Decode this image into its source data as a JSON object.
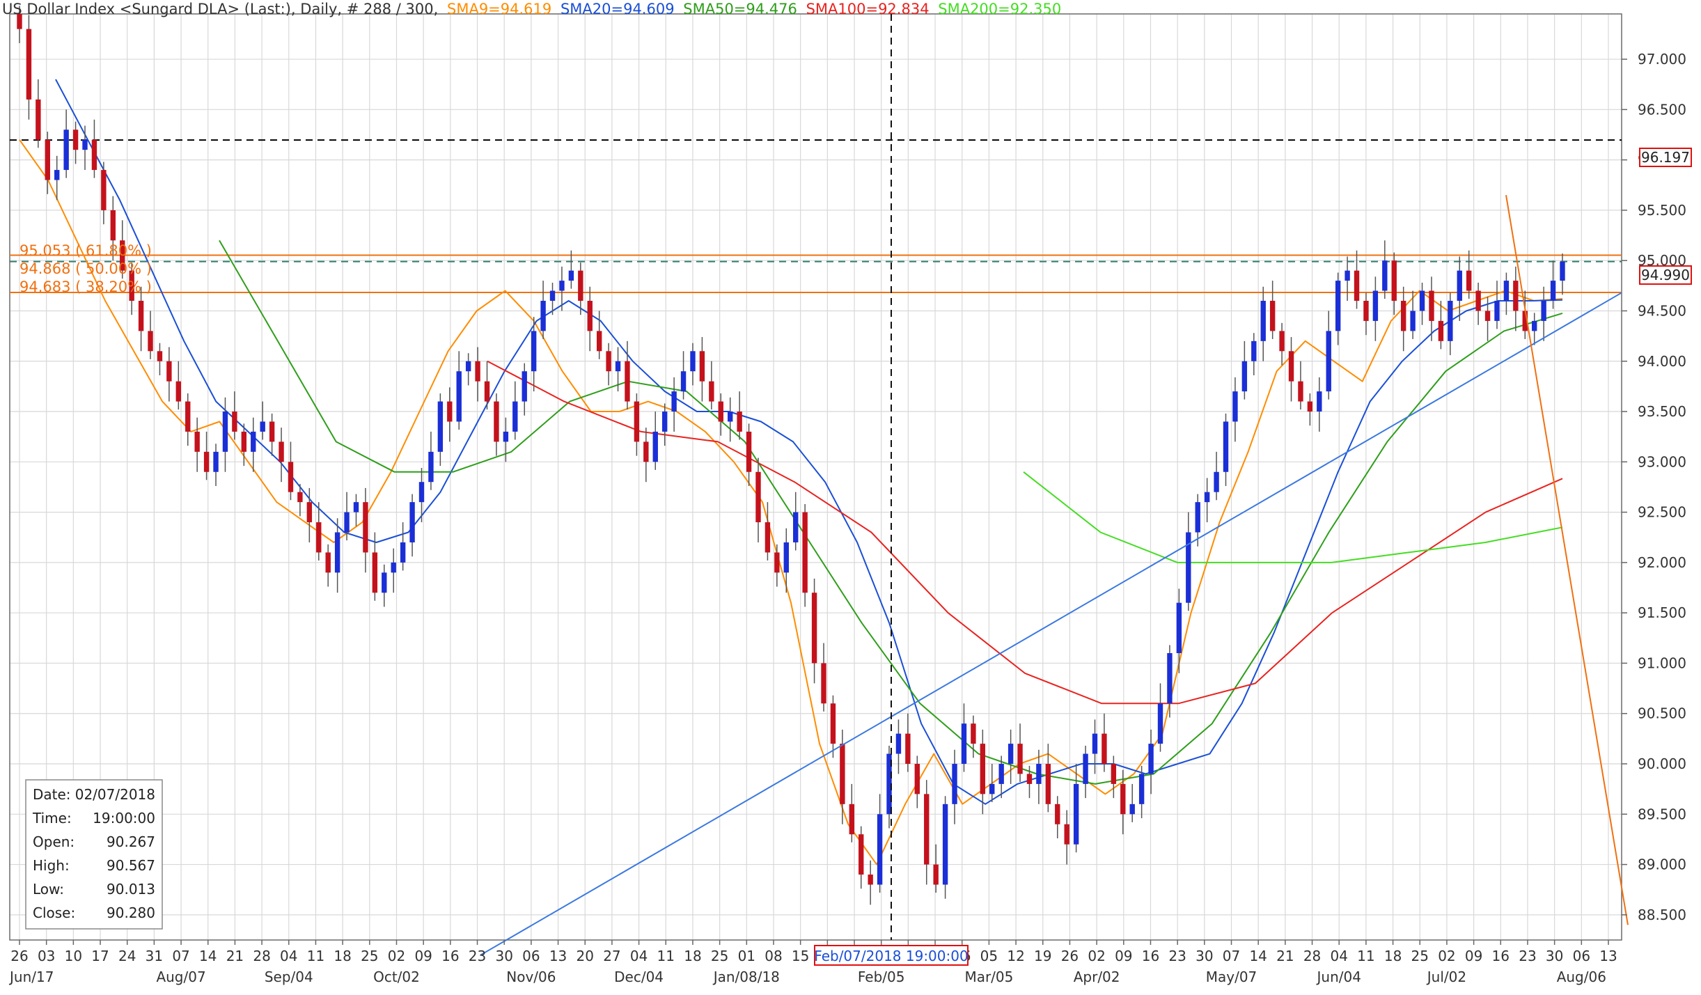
{
  "header": {
    "instrument": "US Dollar Index <Sungard DLA> (Last:), Daily, # 288 / 300,",
    "smas": [
      {
        "label": "SMA9=94.619",
        "color": "#ff8c00"
      },
      {
        "label": "SMA20=94.609",
        "color": "#1a4fd6"
      },
      {
        "label": "SMA50=94.476",
        "color": "#2e9e1a"
      },
      {
        "label": "SMA100=92.834",
        "color": "#e8231f"
      },
      {
        "label": "SMA200=92.350",
        "color": "#44dd22"
      }
    ]
  },
  "markers": {
    "price_marker_top": "96.197",
    "price_marker_last": "94.990",
    "crosshair_date": "Feb/07/2018 19:00:00"
  },
  "info_box": {
    "rows": [
      {
        "label": "Date:",
        "value": "02/07/2018"
      },
      {
        "label": "Time:",
        "value": "19:00:00"
      },
      {
        "label": "Open:",
        "value": "90.267"
      },
      {
        "label": "High:",
        "value": "90.567"
      },
      {
        "label": "Low:",
        "value": "90.013"
      },
      {
        "label": "Close:",
        "value": "90.280"
      }
    ]
  },
  "fib_labels": [
    "95.053 ( 61.80% )",
    "94.868 ( 50.00% )",
    "94.683 ( 38.20% )"
  ],
  "chart_data": {
    "type": "candlestick",
    "ylim": [
      88.25,
      97.45
    ],
    "y_ticks": [
      "97.000",
      "96.500",
      "96.000",
      "95.500",
      "95.000",
      "94.500",
      "94.000",
      "93.500",
      "93.000",
      "92.500",
      "92.000",
      "91.500",
      "91.000",
      "90.500",
      "90.000",
      "89.500",
      "89.000",
      "88.500"
    ],
    "x_ticks": [
      "26",
      "03",
      "10",
      "17",
      "24",
      "31",
      "07",
      "14",
      "21",
      "28",
      "04",
      "11",
      "18",
      "25",
      "02",
      "09",
      "16",
      "23",
      "30",
      "06",
      "13",
      "20",
      "27",
      "04",
      "11",
      "18",
      "25",
      "01",
      "08",
      "15",
      "22",
      "29",
      "05",
      "12",
      "19",
      "26",
      "05",
      "12",
      "19",
      "26",
      "02",
      "09",
      "16",
      "23",
      "30",
      "07",
      "14",
      "21",
      "28",
      "04",
      "11",
      "18",
      "25",
      "02",
      "09",
      "16",
      "23",
      "30",
      "06",
      "13"
    ],
    "month_labels": [
      "Jun/17",
      "Aug/07",
      "Sep/04",
      "Oct/02",
      "Nov/06",
      "Dec/04",
      "Jan/08/18",
      "Feb/05",
      "Mar/05",
      "Apr/02",
      "May/07",
      "Jun/04",
      "Jul/02",
      "Aug/06"
    ],
    "horizontal_lines": [
      {
        "value": 96.197,
        "style": "dashed",
        "color": "#000000"
      },
      {
        "value": 95.053,
        "style": "solid",
        "color": "#f07010"
      },
      {
        "value": 94.99,
        "style": "dashed",
        "color": "#2f7f6f"
      },
      {
        "value": 94.683,
        "style": "solid",
        "color": "#f07010"
      }
    ],
    "trendline": {
      "color": "#3a78e0",
      "from": {
        "date": "Nov/02/2017",
        "value": 88.1
      },
      "to": {
        "date": "Aug/13/2018",
        "value": 94.68
      }
    },
    "fib_swing": {
      "color": "#f07010",
      "from": {
        "date": "Jul/18/2018",
        "value": 95.65
      },
      "to": {
        "date": "Aug/15/2018",
        "value": 88.4
      }
    },
    "crosshair": {
      "date": "Feb/07/2018",
      "value": 96.197
    },
    "series": [
      {
        "name": "Close",
        "values": [
          97.3,
          96.6,
          96.2,
          95.8,
          95.9,
          96.3,
          96.1,
          96.2,
          95.9,
          95.5,
          95.2,
          94.9,
          94.6,
          94.3,
          94.1,
          94.0,
          93.8,
          93.6,
          93.3,
          93.1,
          92.9,
          93.1,
          93.5,
          93.3,
          93.1,
          93.3,
          93.4,
          93.2,
          93.0,
          92.7,
          92.6,
          92.4,
          92.1,
          91.9,
          92.3,
          92.5,
          92.6,
          92.1,
          91.7,
          91.9,
          92.0,
          92.2,
          92.6,
          92.8,
          93.1,
          93.6,
          93.4,
          93.9,
          94.0,
          93.8,
          93.6,
          93.2,
          93.3,
          93.6,
          93.9,
          94.3,
          94.6,
          94.7,
          94.8,
          94.9,
          94.6,
          94.3,
          94.1,
          93.9,
          94.0,
          93.6,
          93.2,
          93.0,
          93.3,
          93.5,
          93.7,
          93.9,
          94.1,
          93.8,
          93.6,
          93.4,
          93.5,
          93.3,
          92.9,
          92.4,
          92.1,
          91.9,
          92.2,
          92.5,
          91.7,
          91.0,
          90.6,
          90.2,
          89.6,
          89.3,
          88.9,
          88.8,
          89.5,
          90.1,
          90.3,
          90.0,
          89.7,
          89.0,
          88.8,
          89.6,
          90.0,
          90.4,
          90.2,
          89.7,
          89.8,
          90.0,
          90.2,
          89.9,
          89.8,
          90.0,
          89.6,
          89.4,
          89.2,
          89.8,
          90.1,
          90.3,
          90.0,
          89.8,
          89.5,
          89.6,
          89.9,
          90.2,
          90.6,
          91.1,
          91.6,
          92.3,
          92.6,
          92.7,
          92.9,
          93.4,
          93.7,
          94.0,
          94.2,
          94.6,
          94.3,
          94.1,
          93.8,
          93.6,
          93.5,
          93.7,
          94.3,
          94.8,
          94.9,
          94.6,
          94.4,
          94.7,
          95.0,
          94.6,
          94.3,
          94.5,
          94.7,
          94.4,
          94.2,
          94.6,
          94.9,
          94.7,
          94.5,
          94.4,
          94.6,
          94.8,
          94.5,
          94.3,
          94.4,
          94.6,
          94.8,
          94.99
        ]
      },
      {
        "name": "SMA9",
        "values": [
          96.2,
          95.8,
          95.2,
          94.6,
          94.1,
          93.6,
          93.3,
          93.4,
          93.0,
          92.6,
          92.4,
          92.2,
          92.4,
          92.9,
          93.5,
          94.1,
          94.5,
          94.7,
          94.4,
          93.9,
          93.5,
          93.5,
          93.6,
          93.5,
          93.3,
          93.0,
          92.6,
          91.6,
          90.2,
          89.4,
          89.0,
          89.6,
          90.1,
          89.6,
          89.8,
          90.0,
          90.1,
          89.9,
          89.7,
          89.9,
          90.3,
          91.5,
          92.4,
          93.1,
          93.9,
          94.2,
          94.0,
          93.8,
          94.4,
          94.7,
          94.5,
          94.6,
          94.7,
          94.6,
          94.62
        ]
      },
      {
        "name": "SMA20",
        "values": [
          96.8,
          96.2,
          95.6,
          94.9,
          94.2,
          93.6,
          93.3,
          93.0,
          92.6,
          92.3,
          92.2,
          92.3,
          92.7,
          93.3,
          93.9,
          94.4,
          94.6,
          94.4,
          94.0,
          93.7,
          93.5,
          93.5,
          93.4,
          93.2,
          92.8,
          92.2,
          91.4,
          90.4,
          89.8,
          89.6,
          89.8,
          89.9,
          90.0,
          90.0,
          89.9,
          90.0,
          90.1,
          90.6,
          91.3,
          92.1,
          92.9,
          93.6,
          94.0,
          94.3,
          94.5,
          94.6,
          94.6,
          94.609
        ]
      },
      {
        "name": "SMA50",
        "values": [
          95.2,
          94.2,
          93.2,
          92.9,
          92.9,
          93.1,
          93.6,
          93.8,
          93.7,
          93.2,
          92.3,
          91.4,
          90.6,
          90.1,
          89.9,
          89.8,
          89.9,
          90.4,
          91.3,
          92.3,
          93.2,
          93.9,
          94.3,
          94.476
        ]
      },
      {
        "name": "SMA100",
        "values": [
          94.0,
          93.6,
          93.3,
          93.2,
          92.8,
          92.3,
          91.5,
          90.9,
          90.6,
          90.6,
          90.8,
          91.5,
          92.0,
          92.5,
          92.834
        ]
      },
      {
        "name": "SMA200",
        "values": [
          92.9,
          92.3,
          92.0,
          92.0,
          92.0,
          92.1,
          92.2,
          92.35
        ]
      }
    ]
  }
}
